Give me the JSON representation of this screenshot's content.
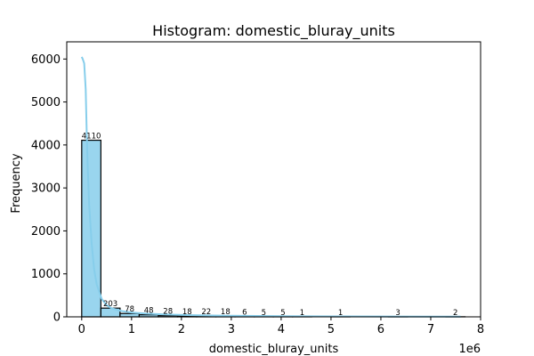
{
  "chart_data": {
    "type": "bar",
    "title": "Histogram: domestic_bluray_units",
    "xlabel": "domestic_bluray_units",
    "ylabel": "Frequency",
    "x_offset_label": "1e6",
    "xlim": [
      -0.3,
      8.0
    ],
    "ylim": [
      0,
      6400
    ],
    "x_ticks": [
      0,
      1,
      2,
      3,
      4,
      5,
      6,
      7,
      8
    ],
    "x_tick_labels": [
      "0",
      "1",
      "2",
      "3",
      "4",
      "5",
      "6",
      "7",
      "8"
    ],
    "y_ticks": [
      0,
      1000,
      2000,
      3000,
      4000,
      5000,
      6000
    ],
    "y_tick_labels": [
      "0",
      "1000",
      "2000",
      "3000",
      "4000",
      "5000",
      "6000"
    ],
    "grid": false,
    "bin_width": 0.3844,
    "bin_starts": [
      0.0,
      0.3844,
      0.7688,
      1.1532,
      1.5376,
      1.922,
      2.3064,
      2.6908,
      3.0752,
      3.4596,
      3.844,
      4.2284,
      4.6128,
      4.9972,
      5.3816,
      5.766,
      6.1504,
      6.5348,
      6.9192,
      7.3036
    ],
    "values": [
      4110,
      203,
      78,
      48,
      28,
      18,
      22,
      18,
      6,
      5,
      5,
      1,
      0,
      1,
      0,
      0,
      3,
      0,
      0,
      2
    ],
    "bar_labels": [
      "4110",
      "203",
      "78",
      "48",
      "28",
      "18",
      "22",
      "18",
      "6",
      "5",
      "5",
      "1",
      "",
      "1",
      "",
      "",
      "3",
      "",
      "",
      "2"
    ],
    "kde_x": [
      0.0,
      0.02,
      0.05,
      0.08,
      0.1,
      0.12,
      0.15,
      0.2,
      0.25,
      0.3,
      0.4,
      0.5,
      0.6,
      0.8,
      1.0,
      1.3,
      1.7,
      2.2,
      3.0,
      4.0,
      5.0,
      6.0,
      7.0,
      7.6
    ],
    "kde_y": [
      6050,
      6000,
      5900,
      5300,
      4300,
      3500,
      2600,
      1700,
      1100,
      760,
      420,
      270,
      200,
      135,
      100,
      75,
      55,
      40,
      25,
      15,
      10,
      8,
      6,
      5
    ],
    "colors": {
      "bar_fill": "#87ceeb",
      "bar_edge": "#000000",
      "kde_line": "#87ceeb"
    }
  }
}
